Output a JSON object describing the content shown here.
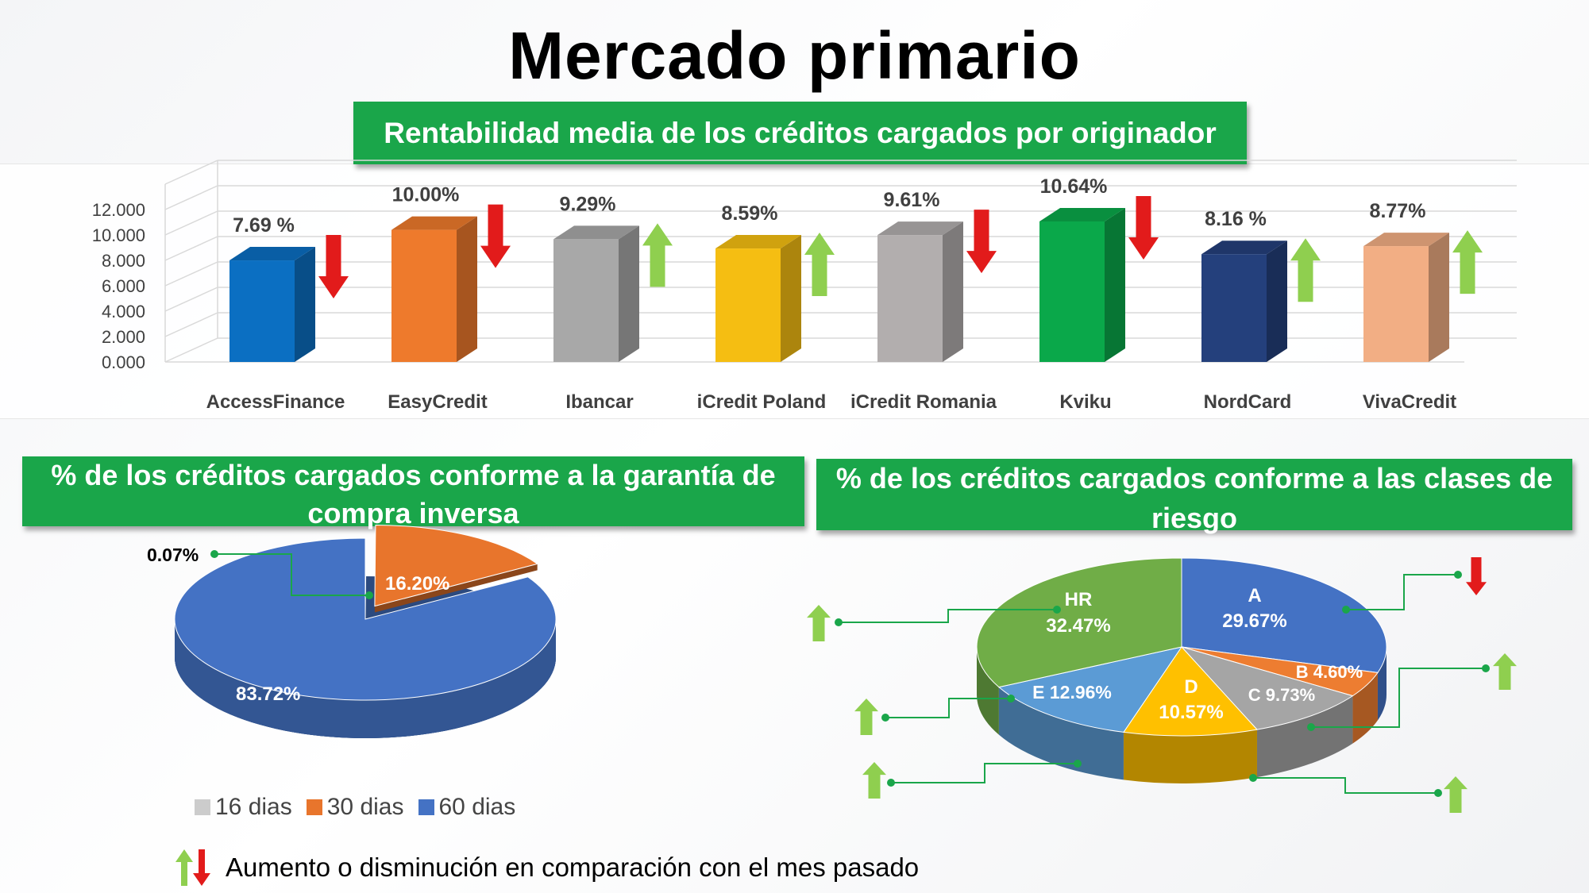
{
  "page": {
    "title": "Mercado primario",
    "footer_note": "Aumento o disminución en comparación con el mes pasado"
  },
  "colors": {
    "banner": "#1aa64a",
    "up_arrow": "#8fcf4f",
    "down_arrow": "#e21b1b"
  },
  "chart_data": [
    {
      "type": "bar",
      "title": "Rentabilidad media de los créditos cargados por originador",
      "categories": [
        "AccessFinance",
        "EasyCredit",
        "Ibancar",
        "iCredit Poland",
        "iCredit Romania",
        "Kviku",
        "NordCard",
        "VivaCredit"
      ],
      "values": [
        7.69,
        10.0,
        9.29,
        8.59,
        9.61,
        10.64,
        8.16,
        8.77
      ],
      "value_labels": [
        "7.69 %",
        "10.00%",
        "9.29%",
        "8.59%",
        "9.61%",
        "10.64%",
        "8.16 %",
        "8.77%"
      ],
      "trend": [
        "down",
        "down",
        "up",
        "up",
        "down",
        "down",
        "up",
        "up"
      ],
      "bar_colors": [
        "#0b6fc2",
        "#ee7a2c",
        "#a8a8a8",
        "#f5be12",
        "#b2aeae",
        "#0aa84a",
        "#24407c",
        "#f2ae84"
      ],
      "yticks": [
        "0.000",
        "2.000",
        "4.000",
        "6.000",
        "8.000",
        "10.000",
        "12.000"
      ],
      "ylim": [
        0,
        14
      ],
      "grid": true
    },
    {
      "type": "pie",
      "title": "% de los créditos cargados conforme a la garantía de compra inversa",
      "slices": [
        {
          "label": "16 dias",
          "value": 0.07,
          "text": "0.07%",
          "color": "#cccccc"
        },
        {
          "label": "30 dias",
          "value": 16.2,
          "text": "16.20%",
          "color": "#e8752c"
        },
        {
          "label": "60 dias",
          "value": 83.72,
          "text": "83.72%",
          "color": "#4472c4"
        }
      ],
      "legend": [
        "16 dias",
        "30 dias",
        "60 dias"
      ],
      "legend_position": "bottom"
    },
    {
      "type": "pie",
      "title": "% de los créditos cargados conforme a las clases de riesgo",
      "slices": [
        {
          "label": "A",
          "value": 29.67,
          "text": "29.67%",
          "color": "#4472c4",
          "trend": "down"
        },
        {
          "label": "B",
          "value": 4.6,
          "text": "4.60%",
          "color": "#ed7d31",
          "trend": "up"
        },
        {
          "label": "C",
          "value": 9.73,
          "text": "9.73%",
          "color": "#a5a5a5",
          "trend": "up"
        },
        {
          "label": "D",
          "value": 10.57,
          "text": "10.57%",
          "color": "#ffc000",
          "trend": "up"
        },
        {
          "label": "E",
          "value": 12.96,
          "text": "12.96%",
          "color": "#5b9bd5",
          "trend": "up"
        },
        {
          "label": "HR",
          "value": 32.47,
          "text": "32.47%",
          "color": "#70ad47",
          "trend": "up"
        }
      ]
    }
  ]
}
